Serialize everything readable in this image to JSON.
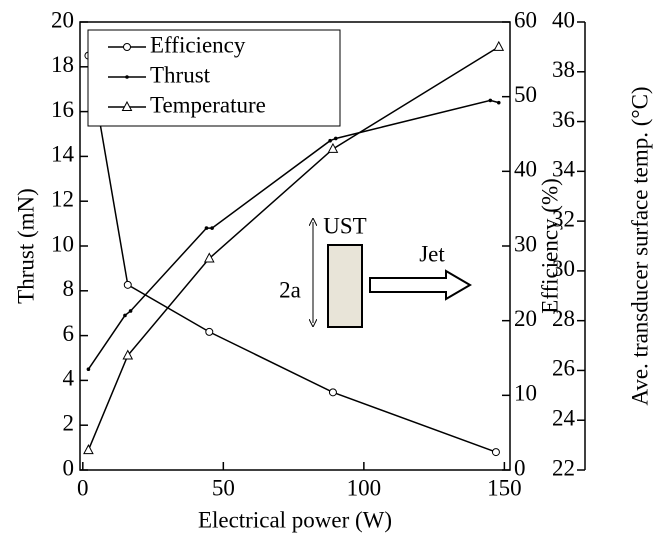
{
  "chart_data": {
    "type": "line",
    "xlabel": "Electrical power (W)",
    "ylabel": "Thrust (mN)",
    "y2label": "Efficiency (%)",
    "y3label": "Ave. transducer surface temp. (°C)",
    "xlim": [
      -1,
      152
    ],
    "xticks": [
      0,
      50,
      100,
      150
    ],
    "ylim": [
      0,
      20
    ],
    "yticks": [
      0,
      2,
      4,
      6,
      8,
      10,
      12,
      14,
      16,
      18,
      20
    ],
    "y2lim": [
      0,
      60
    ],
    "y2ticks": [
      0,
      10,
      20,
      30,
      40,
      50,
      60
    ],
    "y3lim": [
      22,
      40
    ],
    "y3ticks": [
      22,
      24,
      26,
      28,
      30,
      32,
      34,
      36,
      38,
      40
    ],
    "series": [
      {
        "name": "Efficiency",
        "color": "#000000",
        "marker": "circle",
        "axis": "y2",
        "x": [
          2,
          16,
          45,
          89,
          147
        ],
        "values": [
          55.5,
          24.8,
          18.5,
          10.4,
          2.4
        ]
      },
      {
        "name": "Thrust",
        "color": "#000000",
        "marker": "dot",
        "axis": "y",
        "x": [
          2,
          15,
          17,
          44,
          46,
          88,
          90,
          145,
          148
        ],
        "values": [
          4.5,
          6.9,
          7.1,
          10.8,
          10.8,
          14.7,
          14.8,
          16.5,
          16.4
        ]
      },
      {
        "name": "Temperature",
        "color": "#000000",
        "marker": "triangle",
        "axis": "y3",
        "x": [
          2,
          16,
          45,
          89,
          148
        ],
        "values": [
          22.8,
          26.6,
          30.5,
          34.9,
          39.0
        ]
      }
    ],
    "annotations": [
      "UST",
      "Jet",
      "2a"
    ]
  }
}
